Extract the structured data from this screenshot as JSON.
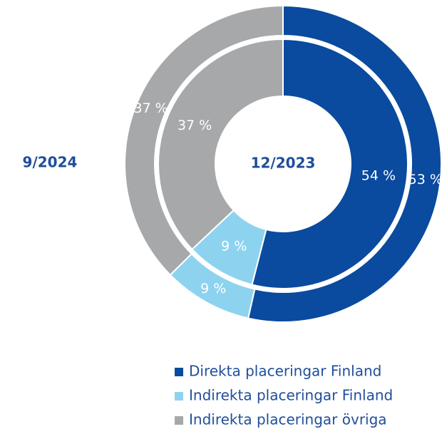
{
  "chart_data": {
    "type": "donut",
    "categories": [
      "Direkta placeringar Finland",
      "Indirekta placeringar Finland",
      "Indirekta placeringar övriga"
    ],
    "colors": [
      "#0a4a9f",
      "#8dd3f0",
      "#a6a8a9"
    ],
    "series": [
      {
        "name": "9/2024",
        "values": [
          53,
          9,
          37
        ],
        "value_labels": [
          "53 %",
          "9 %",
          "37 %"
        ]
      },
      {
        "name": "12/2023",
        "values": [
          54,
          9,
          37
        ],
        "value_labels": [
          "54 %",
          "9 %",
          "37 %"
        ]
      }
    ]
  }
}
